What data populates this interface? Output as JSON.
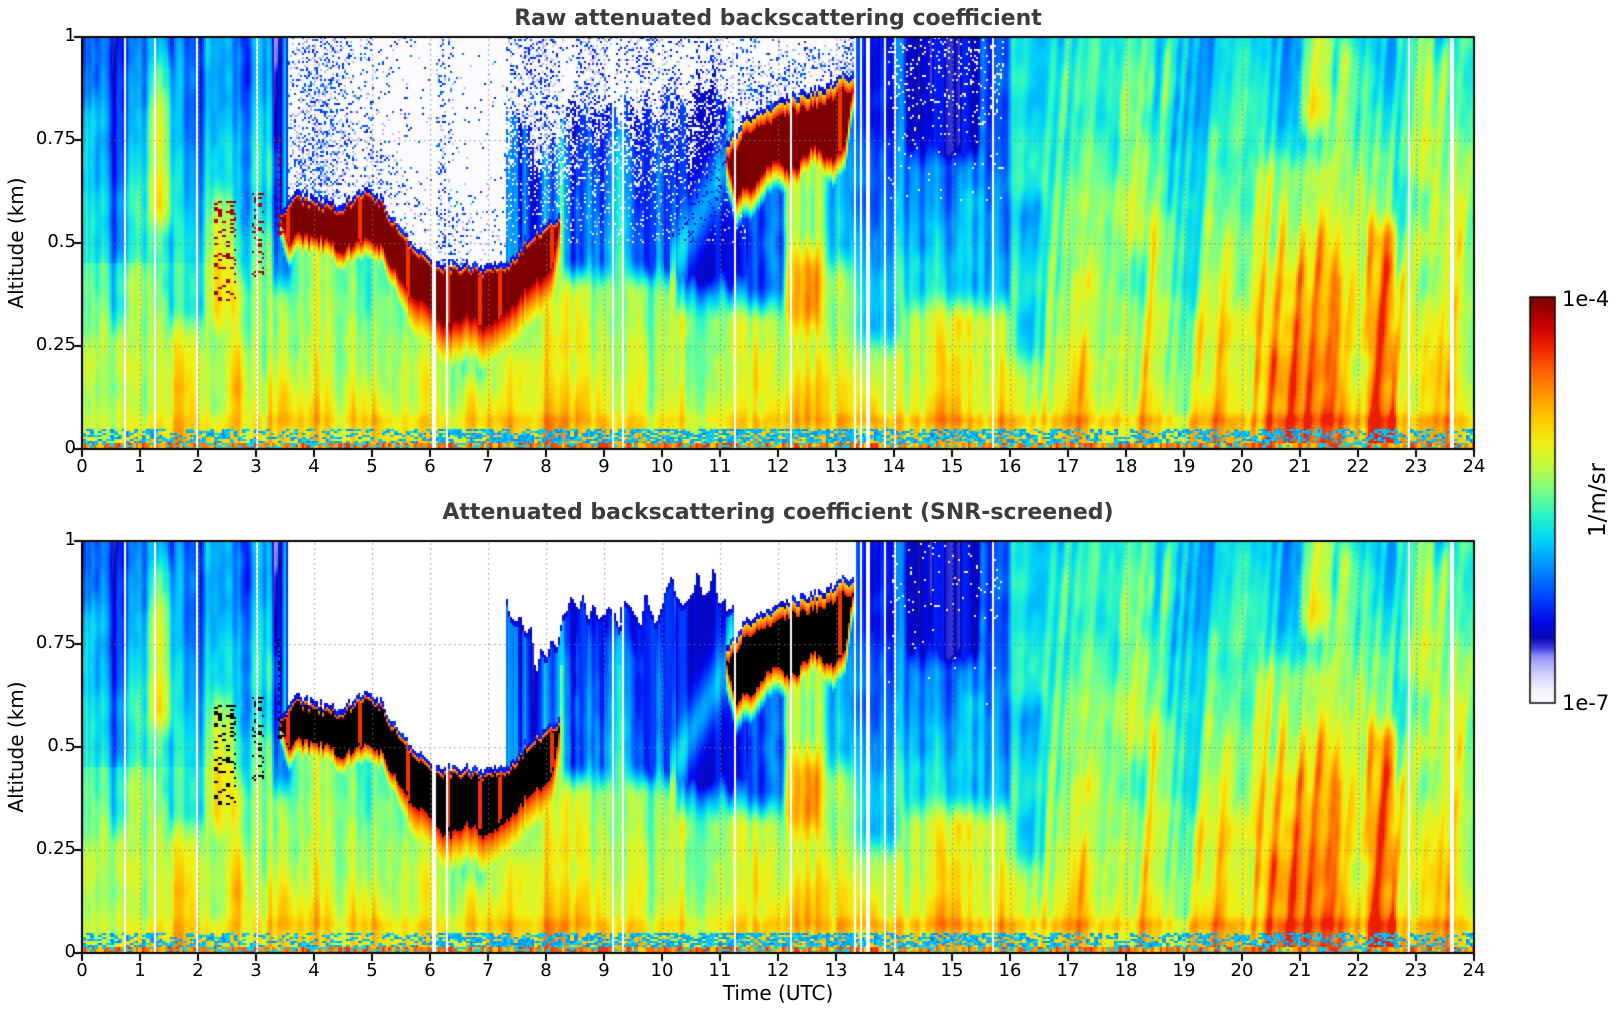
{
  "chart_data": {
    "type": "heatmap",
    "panels": [
      {
        "name": "raw",
        "title": "Raw attenuated backscattering coefficient"
      },
      {
        "name": "screened",
        "title": "Attenuated backscattering coefficient (SNR-screened)"
      }
    ],
    "x": {
      "label": "Time (UTC)",
      "range": [
        0,
        24
      ],
      "ticks": [
        0,
        1,
        2,
        3,
        4,
        5,
        6,
        7,
        8,
        9,
        10,
        11,
        12,
        13,
        14,
        15,
        16,
        17,
        18,
        19,
        20,
        21,
        22,
        23,
        24
      ]
    },
    "y": {
      "label": "Altitude (km)",
      "range": [
        0,
        1
      ],
      "ticks": [
        0,
        0.25,
        0.5,
        0.75,
        1
      ],
      "tick_labels": [
        "0",
        "0.25",
        "0.5",
        "0.75",
        "1"
      ]
    },
    "colorbar": {
      "max_label": "1e-4",
      "min_label": "1e-7",
      "units": "1/m/sr",
      "scale": "log"
    },
    "grid": {
      "style": "dotted",
      "color": "#888888"
    },
    "colormap_stops": [
      [
        0.0,
        255,
        255,
        255
      ],
      [
        0.03,
        242,
        242,
        255
      ],
      [
        0.06,
        218,
        218,
        252
      ],
      [
        0.09,
        184,
        184,
        250
      ],
      [
        0.115,
        140,
        140,
        246
      ],
      [
        0.135,
        60,
        60,
        225
      ],
      [
        0.16,
        8,
        8,
        180
      ],
      [
        0.2,
        0,
        10,
        235
      ],
      [
        0.25,
        0,
        60,
        255
      ],
      [
        0.32,
        0,
        130,
        255
      ],
      [
        0.4,
        0,
        210,
        250
      ],
      [
        0.46,
        40,
        245,
        200
      ],
      [
        0.52,
        120,
        255,
        140
      ],
      [
        0.58,
        190,
        250,
        70
      ],
      [
        0.64,
        240,
        240,
        20
      ],
      [
        0.7,
        255,
        200,
        0
      ],
      [
        0.76,
        255,
        150,
        0
      ],
      [
        0.82,
        255,
        95,
        0
      ],
      [
        0.875,
        240,
        35,
        0
      ],
      [
        0.93,
        200,
        0,
        0
      ],
      [
        1.0,
        125,
        0,
        0
      ]
    ],
    "features": {
      "cloud1_track": [
        [
          3.42,
          0.565
        ],
        [
          3.7,
          0.6
        ],
        [
          4.1,
          0.585
        ],
        [
          4.5,
          0.575
        ],
        [
          4.85,
          0.615
        ],
        [
          5.1,
          0.6
        ],
        [
          5.55,
          0.5
        ],
        [
          5.9,
          0.455
        ],
        [
          6.3,
          0.43
        ],
        [
          6.7,
          0.425
        ],
        [
          7.1,
          0.425
        ],
        [
          7.45,
          0.45
        ],
        [
          7.7,
          0.5
        ],
        [
          7.95,
          0.52
        ],
        [
          8.25,
          0.545
        ]
      ],
      "cloud2_track": [
        [
          11.1,
          0.7
        ],
        [
          11.45,
          0.765
        ],
        [
          11.8,
          0.795
        ],
        [
          12.15,
          0.815
        ],
        [
          12.5,
          0.825
        ],
        [
          12.85,
          0.845
        ],
        [
          13.1,
          0.865
        ],
        [
          13.3,
          0.875
        ]
      ],
      "data_gaps_utc": [
        0.73,
        1.27,
        1.98,
        3.03,
        6.07,
        6.3,
        9.16,
        9.33,
        11.27,
        12.22,
        13.34,
        13.44,
        13.55,
        13.83,
        14.03,
        15.7,
        22.88,
        23.62
      ],
      "regions": [
        {
          "t": [
            0.5,
            0.78
          ],
          "z": [
            0.3,
            1.05
          ],
          "amp": -0.13,
          "seed": 301
        },
        {
          "t": [
            1.15,
            1.55
          ],
          "z": [
            0.55,
            0.95
          ],
          "amp": 0.15,
          "seed": 302
        },
        {
          "t": [
            1.5,
            2.1
          ],
          "z": [
            0.3,
            1.05
          ],
          "amp": -0.16,
          "seed": 303
        },
        {
          "t": [
            2.25,
            2.65
          ],
          "z": [
            0.3,
            0.62
          ],
          "amp": 0.13,
          "seed": 304
        },
        {
          "t": [
            2.6,
            2.9
          ],
          "z": [
            0.4,
            1.05
          ],
          "amp": -0.12,
          "seed": 305
        },
        {
          "t": [
            3.25,
            3.6
          ],
          "z": [
            0.4,
            1.05
          ],
          "amp": -0.18,
          "seed": 306
        },
        {
          "t": [
            8.3,
            11.45
          ],
          "z": [
            0.42,
            1.05
          ],
          "amp": -0.26,
          "seed": 307
        },
        {
          "t": [
            10.25,
            11.25
          ],
          "z": [
            0.35,
            0.8
          ],
          "amp": -0.16,
          "seed": 308
        },
        {
          "t": [
            11.1,
            12.1
          ],
          "z": [
            0.35,
            0.68
          ],
          "amp": -0.22,
          "seed": 309
        },
        {
          "t": [
            12.15,
            12.8
          ],
          "z": [
            0.28,
            0.48
          ],
          "amp": 0.12,
          "seed": 310
        },
        {
          "t": [
            12.12,
            12.78
          ],
          "z": [
            0.3,
            0.76
          ],
          "amp": 0.1,
          "seed": 320
        },
        {
          "t": [
            12.85,
            13.35
          ],
          "z": [
            0.45,
            0.8
          ],
          "amp": -0.12,
          "seed": 321
        },
        {
          "t": [
            13.35,
            14.15
          ],
          "z": [
            0.25,
            1.05
          ],
          "amp": -0.18,
          "seed": 311
        },
        {
          "t": [
            14.15,
            16.0
          ],
          "z": [
            0.35,
            1.05
          ],
          "amp": -0.2,
          "seed": 312
        },
        {
          "t": [
            14.25,
            15.45
          ],
          "z": [
            0.72,
            1.05
          ],
          "amp": -0.24,
          "seed": 313
        },
        {
          "t": [
            15.9,
            16.6
          ],
          "z": [
            0.2,
            0.6
          ],
          "amp": -0.1,
          "seed": 314
        },
        {
          "t": [
            20.2,
            21.7
          ],
          "z": [
            -0.05,
            0.7
          ],
          "amp": 0.1,
          "seed": 315
        },
        {
          "t": [
            21.0,
            21.55
          ],
          "z": [
            0.78,
            1.05
          ],
          "amp": 0.16,
          "seed": 316
        },
        {
          "t": [
            22.15,
            22.65
          ],
          "z": [
            -0.05,
            0.55
          ],
          "amp": 0.16,
          "seed": 317
        },
        {
          "t": [
            22.7,
            23.3
          ],
          "z": [
            0.65,
            1.05
          ],
          "amp": 0.1,
          "seed": 318
        },
        {
          "t": [
            17.9,
            18.5
          ],
          "z": [
            0.5,
            1.05
          ],
          "amp": 0.09,
          "seed": 319
        }
      ],
      "fibers": [
        {
          "t": 17.15,
          "zmax": 0.55,
          "amp": 0.09,
          "w": 0.045
        },
        {
          "t": 18.22,
          "zmax": 1.0,
          "amp": 0.13,
          "w": 0.05
        },
        {
          "t": 18.45,
          "zmax": 0.6,
          "amp": 0.09,
          "w": 0.045
        },
        {
          "t": 19.15,
          "zmax": 0.8,
          "amp": 0.11,
          "w": 0.045
        },
        {
          "t": 19.5,
          "zmax": 0.55,
          "amp": 0.1,
          "w": 0.045
        },
        {
          "t": 20.45,
          "zmax": 0.6,
          "amp": 0.13,
          "w": 0.055
        },
        {
          "t": 20.8,
          "zmax": 0.55,
          "amp": 0.14,
          "w": 0.05
        },
        {
          "t": 21.1,
          "zmax": 0.6,
          "amp": 0.15,
          "w": 0.05
        },
        {
          "t": 21.35,
          "zmax": 0.5,
          "amp": 0.13,
          "w": 0.045
        },
        {
          "t": 21.3,
          "zmin": 0.75,
          "zmax": 1.0,
          "amp": 0.16,
          "w": 0.08
        },
        {
          "t": 22.3,
          "zmax": 0.55,
          "amp": 0.16,
          "w": 0.05
        },
        {
          "t": 22.55,
          "zmax": 0.45,
          "amp": 0.15,
          "w": 0.045
        },
        {
          "t": 23.0,
          "zmin": 0.6,
          "zmax": 1.0,
          "amp": 0.1,
          "w": 0.07
        },
        {
          "t": 23.5,
          "zmax": 0.6,
          "amp": 0.11,
          "w": 0.045
        }
      ],
      "flecks": [
        {
          "t": [
            2.26,
            2.66
          ],
          "z": [
            0.36,
            0.6
          ],
          "p": 0.22
        },
        {
          "t": [
            2.92,
            3.14
          ],
          "z": [
            0.4,
            0.62
          ],
          "p": 0.2
        },
        {
          "t": [
            3.38,
            3.52
          ],
          "z": [
            0.52,
            0.78
          ],
          "p": 0.5
        }
      ],
      "snr_blue_blobs": [
        [
          9.35,
          0.82,
          0.07,
          0.03
        ],
        [
          9.9,
          0.78,
          0.05,
          0.025
        ],
        [
          10.6,
          0.84,
          0.045,
          0.02
        ]
      ],
      "surface_band": {
        "z_top": 0.05,
        "z_bottom": 0.014,
        "cyan_fraction": 0.5
      }
    }
  }
}
